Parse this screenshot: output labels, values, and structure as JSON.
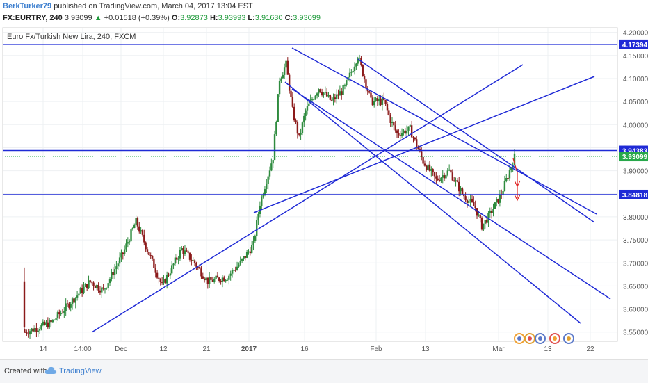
{
  "header": {
    "user": "BerkTurker79",
    "published": "published on TradingView.com, March 04, 2017 13:04 EST",
    "symbol": "FX:EURTRY, 240",
    "last": "3.93099",
    "change": "+0.01518 (+0.39%)",
    "o_label": "O:",
    "o": "3.92873",
    "h_label": "H:",
    "h": "3.93993",
    "l_label": "L:",
    "l": "3.91630",
    "c_label": "C:",
    "c": "3.93099"
  },
  "footer": {
    "created": "Created with",
    "brand": "TradingView"
  },
  "chart_data": {
    "type": "candlestick",
    "title": "Euro Fx/Turkish New Lira, 240, FXCM",
    "xlabel": "",
    "ylabel": "",
    "ylim": [
      3.53,
      4.21
    ],
    "yticks": [
      "4.20000",
      "4.15000",
      "4.10000",
      "4.05000",
      "4.00000",
      "3.95000",
      "3.90000",
      "3.85000",
      "3.80000",
      "3.75000",
      "3.70000",
      "3.65000",
      "3.60000",
      "3.55000"
    ],
    "xticks": [
      "14",
      "14:00",
      "Dec",
      "12",
      "21",
      "2017",
      "16",
      "Feb",
      "13",
      "Mar",
      "13",
      "22"
    ],
    "grid": true,
    "price_labels": [
      {
        "value": 4.17394,
        "text": "4.17394",
        "color": "#1f2ad6"
      },
      {
        "value": 3.94383,
        "text": "3.94383",
        "color": "#1f2ad6"
      },
      {
        "value": 3.93099,
        "text": "3.93099",
        "color": "#27a84a"
      },
      {
        "value": 3.84818,
        "text": "3.84818",
        "color": "#1f2ad6"
      }
    ],
    "horizontal_levels": [
      4.17394,
      3.94383,
      3.84818
    ],
    "close_path": [
      {
        "x": 0,
        "y": 3.55
      },
      {
        "x": 8,
        "y": 3.57
      },
      {
        "x": 16,
        "y": 3.63
      },
      {
        "x": 20,
        "y": 3.66
      },
      {
        "x": 24,
        "y": 3.64
      },
      {
        "x": 30,
        "y": 3.72
      },
      {
        "x": 34,
        "y": 3.79
      },
      {
        "x": 38,
        "y": 3.72
      },
      {
        "x": 42,
        "y": 3.65
      },
      {
        "x": 48,
        "y": 3.73
      },
      {
        "x": 52,
        "y": 3.7
      },
      {
        "x": 56,
        "y": 3.66
      },
      {
        "x": 62,
        "y": 3.67
      },
      {
        "x": 66,
        "y": 3.7
      },
      {
        "x": 70,
        "y": 3.74
      },
      {
        "x": 72,
        "y": 3.83
      },
      {
        "x": 76,
        "y": 3.93
      },
      {
        "x": 78,
        "y": 4.1
      },
      {
        "x": 80,
        "y": 4.13
      },
      {
        "x": 82,
        "y": 4.03
      },
      {
        "x": 84,
        "y": 3.97
      },
      {
        "x": 86,
        "y": 4.03
      },
      {
        "x": 90,
        "y": 4.08
      },
      {
        "x": 94,
        "y": 4.05
      },
      {
        "x": 98,
        "y": 4.08
      },
      {
        "x": 102,
        "y": 4.15
      },
      {
        "x": 104,
        "y": 4.1
      },
      {
        "x": 106,
        "y": 4.05
      },
      {
        "x": 110,
        "y": 4.05
      },
      {
        "x": 112,
        "y": 4.01
      },
      {
        "x": 114,
        "y": 3.98
      },
      {
        "x": 118,
        "y": 3.99
      },
      {
        "x": 122,
        "y": 3.92
      },
      {
        "x": 126,
        "y": 3.88
      },
      {
        "x": 130,
        "y": 3.9
      },
      {
        "x": 134,
        "y": 3.85
      },
      {
        "x": 138,
        "y": 3.82
      },
      {
        "x": 140,
        "y": 3.78
      },
      {
        "x": 142,
        "y": 3.8
      },
      {
        "x": 146,
        "y": 3.85
      },
      {
        "x": 150,
        "y": 3.93
      }
    ]
  }
}
